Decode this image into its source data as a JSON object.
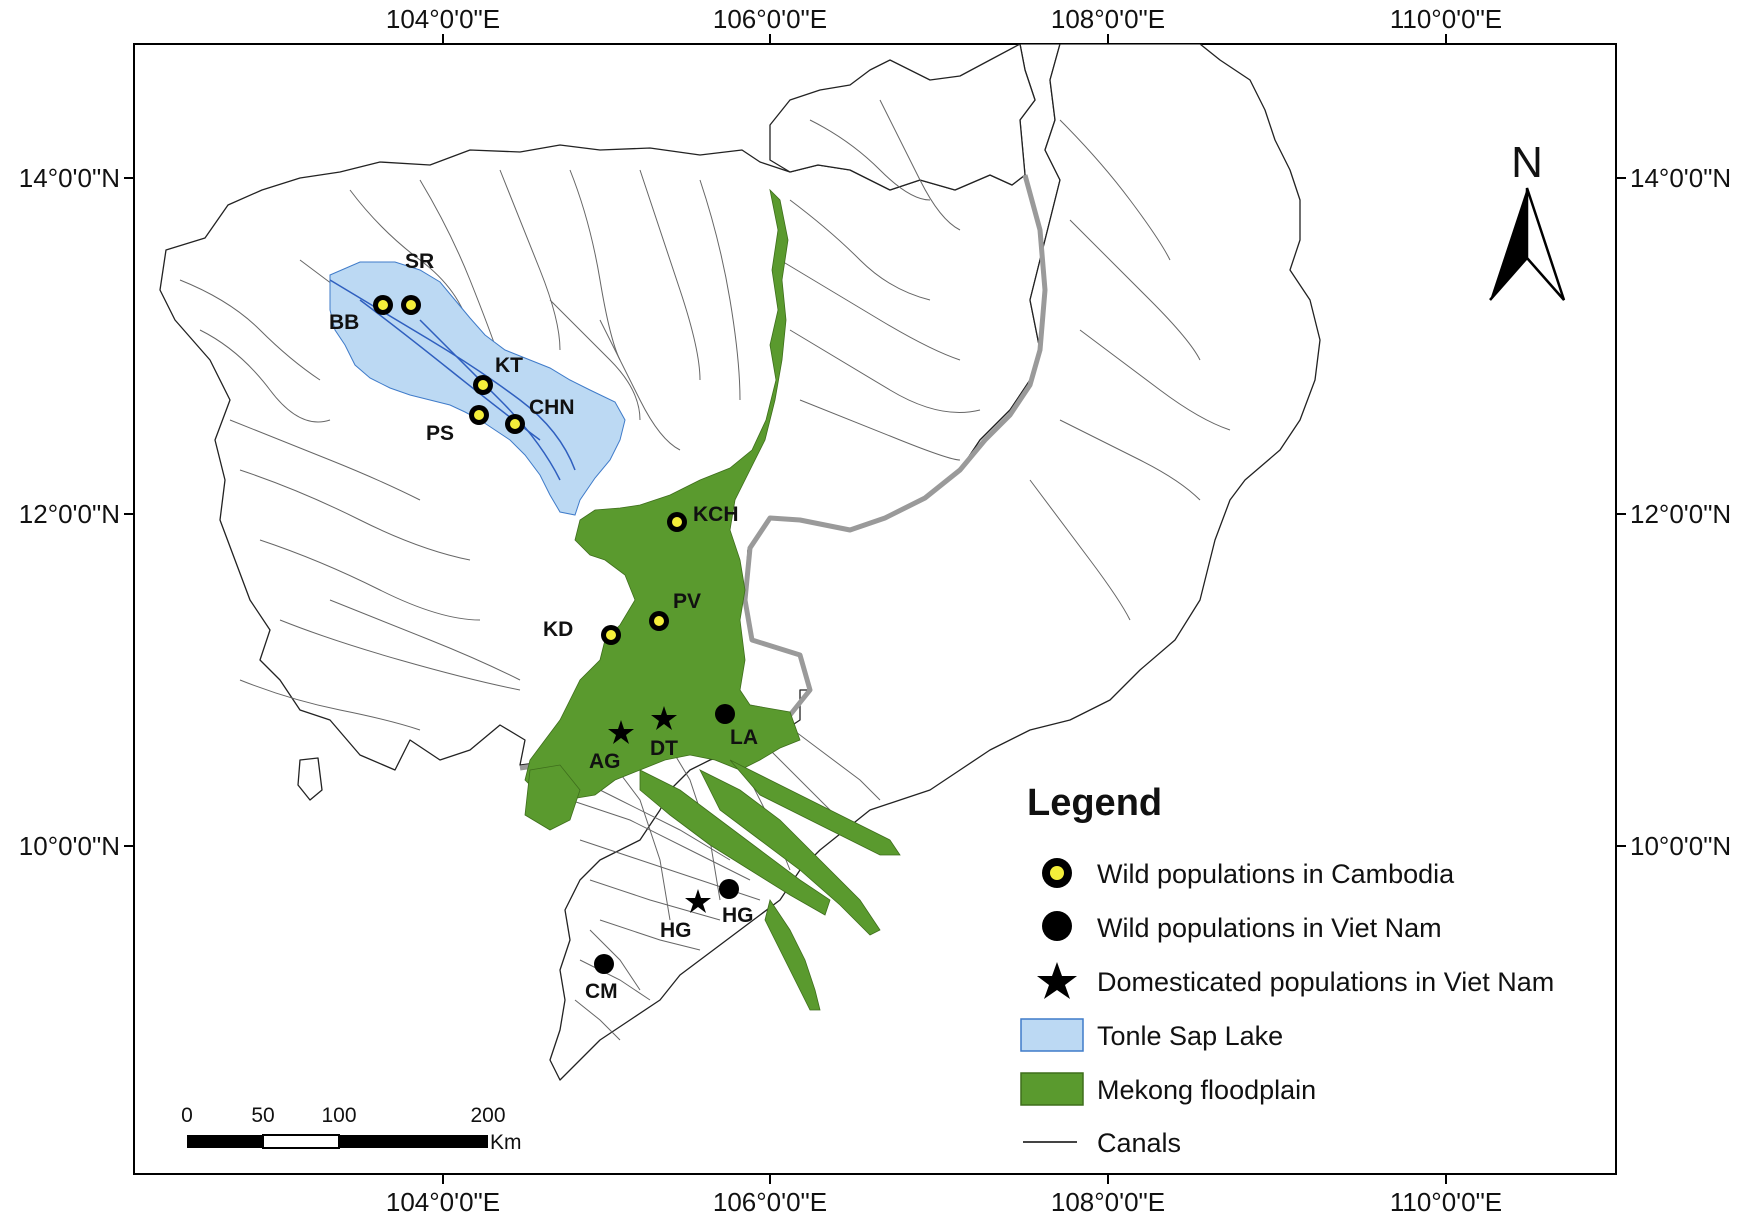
{
  "graticule": {
    "top_labels": [
      "104°0'0\"E",
      "106°0'0\"E",
      "108°0'0\"E",
      "110°0'0\"E"
    ],
    "bottom_labels": [
      "104°0'0\"E",
      "106°0'0\"E",
      "108°0'0\"E",
      "110°0'0\"E"
    ],
    "left_labels": [
      "14°0'0\"N",
      "12°0'0\"N",
      "10°0'0\"N"
    ],
    "right_labels": [
      "14°0'0\"N",
      "12°0'0\"N",
      "10°0'0\"N"
    ]
  },
  "north_arrow": {
    "label": "N"
  },
  "sites": [
    {
      "code": "SR",
      "type": "wild-cambodia"
    },
    {
      "code": "BB",
      "type": "wild-cambodia"
    },
    {
      "code": "KT",
      "type": "wild-cambodia"
    },
    {
      "code": "CHN",
      "type": "wild-cambodia"
    },
    {
      "code": "PS",
      "type": "wild-cambodia"
    },
    {
      "code": "KCH",
      "type": "wild-cambodia"
    },
    {
      "code": "PV",
      "type": "wild-cambodia"
    },
    {
      "code": "KD",
      "type": "wild-cambodia"
    },
    {
      "code": "LA",
      "type": "wild-vietnam"
    },
    {
      "code": "DT",
      "type": "domesticated-vietnam"
    },
    {
      "code": "AG",
      "type": "domesticated-vietnam"
    },
    {
      "code": "HG",
      "type": "domesticated-vietnam"
    },
    {
      "code": "HG",
      "type": "wild-vietnam"
    },
    {
      "code": "CM",
      "type": "wild-vietnam"
    }
  ],
  "legend": {
    "title": "Legend",
    "items": [
      {
        "label": "Wild populations in Cambodia",
        "symbol": "yellow-ringed-dot"
      },
      {
        "label": "Wild populations in Viet Nam",
        "symbol": "black-dot"
      },
      {
        "label": "Domesticated populations in Viet Nam",
        "symbol": "black-star"
      },
      {
        "label": "Tonle Sap Lake",
        "symbol": "light-blue-box"
      },
      {
        "label": "Mekong floodplain",
        "symbol": "green-box"
      },
      {
        "label": "Canals",
        "symbol": "thin-line"
      }
    ]
  },
  "scale_bar": {
    "ticks": [
      "0",
      "50",
      "100",
      "200"
    ],
    "unit": "Km"
  },
  "colors": {
    "lake": "#bcd9f3",
    "floodplain": "#5a9a2e",
    "border": "#9a9a9a",
    "wild_cambodia_fill": "#f5ef3a",
    "frame": "#000000"
  }
}
